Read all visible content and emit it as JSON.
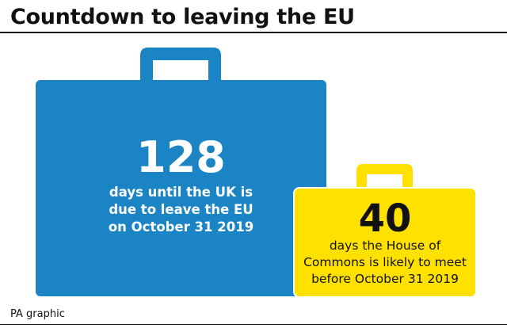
{
  "title": "Countdown to leaving the EU",
  "colors": {
    "blue": "#1b84c5",
    "yellow": "#ffe100",
    "text_dark": "#111111",
    "text_light": "#ffffff"
  },
  "blue_case": {
    "icon": "briefcase-icon",
    "number": "128",
    "caption": "days until the UK is\ndue to leave the EU\non October 31 2019"
  },
  "yellow_case": {
    "icon": "briefcase-icon",
    "number": "40",
    "caption": "days the House of\nCommons is likely to meet\nbefore October 31 2019"
  },
  "credit": "PA graphic"
}
